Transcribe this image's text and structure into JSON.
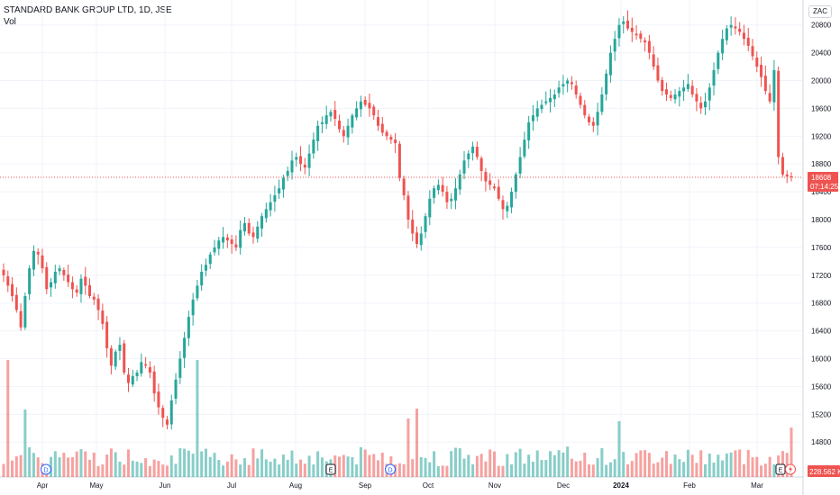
{
  "legend": {
    "title": "STANDARD BANK GROUP LTD, 1D, JSE",
    "vol_label": "Vol"
  },
  "currency": "ZAC",
  "chart_data": {
    "type": "candlestick",
    "title": "STANDARD BANK GROUP LTD, 1D, JSE",
    "ylim": [
      14400,
      21000
    ],
    "y_ticks": [
      14800,
      15200,
      15600,
      16000,
      16400,
      16800,
      17200,
      17600,
      18000,
      18400,
      18800,
      19200,
      19600,
      20000,
      20400,
      20800
    ],
    "x_ticks": [
      "Apr",
      "May",
      "Jun",
      "Jul",
      "Aug",
      "Sep",
      "Oct",
      "Nov",
      "Dec",
      "2024",
      "Feb",
      "Mar"
    ],
    "last_price": 18608,
    "countdown": "07:14:25",
    "volume_last": "228.562 K",
    "up_color": "#26a69a",
    "down_color": "#ef5350",
    "events": [
      "D",
      "E",
      "D",
      "E",
      "lightning"
    ],
    "close": [
      17200,
      17050,
      16900,
      16700,
      16450,
      16900,
      17300,
      17550,
      17500,
      17300,
      17000,
      17100,
      17250,
      17300,
      17200,
      17100,
      17000,
      16950,
      17150,
      17050,
      16900,
      16850,
      16700,
      16500,
      16150,
      15900,
      16100,
      16200,
      15800,
      15650,
      15750,
      15800,
      15950,
      15900,
      15800,
      15500,
      15300,
      15150,
      15050,
      15400,
      15700,
      16000,
      16300,
      16600,
      16850,
      17050,
      17250,
      17350,
      17500,
      17600,
      17700,
      17750,
      17700,
      17650,
      17600,
      17850,
      17950,
      17800,
      17750,
      17900,
      18050,
      18150,
      18250,
      18350,
      18450,
      18600,
      18700,
      18850,
      18900,
      18800,
      18750,
      18950,
      19150,
      19350,
      19400,
      19500,
      19550,
      19450,
      19300,
      19200,
      19350,
      19500,
      19600,
      19700,
      19650,
      19600,
      19500,
      19350,
      19250,
      19200,
      19150,
      19100,
      18600,
      18350,
      18000,
      17800,
      17650,
      17800,
      18050,
      18300,
      18450,
      18500,
      18400,
      18250,
      18300,
      18450,
      18650,
      18850,
      18950,
      19050,
      18900,
      18700,
      18550,
      18500,
      18450,
      18300,
      18150,
      18200,
      18400,
      18650,
      18900,
      19150,
      19400,
      19500,
      19600,
      19650,
      19700,
      19750,
      19800,
      19900,
      19950,
      20000,
      19950,
      19800,
      19650,
      19500,
      19400,
      19350,
      19550,
      19800,
      20100,
      20400,
      20600,
      20800,
      20850,
      20750,
      20700,
      20650,
      20600,
      20550,
      20400,
      20200,
      20000,
      19850,
      19800,
      19750,
      19800,
      19850,
      19900,
      19950,
      19800,
      19700,
      19600,
      19700,
      19900,
      20150,
      20400,
      20600,
      20750,
      20800,
      20750,
      20700,
      20600,
      20500,
      20350,
      20200,
      20050,
      19850,
      19700,
      20150,
      18900,
      18650,
      18620,
      18608
    ]
  }
}
